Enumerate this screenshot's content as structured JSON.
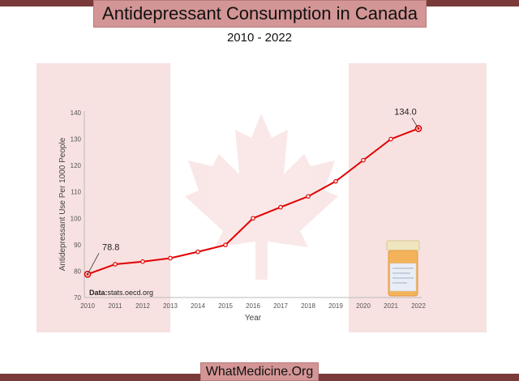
{
  "header": {
    "title": "Antidepressant Consumption in Canada",
    "subtitle": "2010 - 2022"
  },
  "footer": {
    "site": "WhatMedicine.Org"
  },
  "source": {
    "label": "Data:",
    "text": "stats.oecd.org"
  },
  "colors": {
    "line": "#e00000",
    "marker": "#e00000",
    "bar": "#7a3a3a",
    "box": "#d39595"
  },
  "chart_data": {
    "type": "line",
    "title": "Antidepressant Consumption in Canada",
    "subtitle": "2010 - 2022",
    "xlabel": "Year",
    "ylabel": "Antidepressant Use Per 1000 People",
    "categories": [
      "2010",
      "2011",
      "2012",
      "2013",
      "2014",
      "2015",
      "2016",
      "2017",
      "2018",
      "2019",
      "2020",
      "2021",
      "2022"
    ],
    "values": [
      78.8,
      82.6,
      83.6,
      84.9,
      87.3,
      89.9,
      100.0,
      104.2,
      108.3,
      114.0,
      122.0,
      130.0,
      134.0
    ],
    "ylim": [
      70,
      140
    ],
    "yticks": [
      70,
      80,
      90,
      100,
      110,
      120,
      130,
      140
    ],
    "data_labels": [
      {
        "index": 0,
        "text": "78.8"
      },
      {
        "index": 12,
        "text": "134.0"
      }
    ],
    "grid": false
  }
}
